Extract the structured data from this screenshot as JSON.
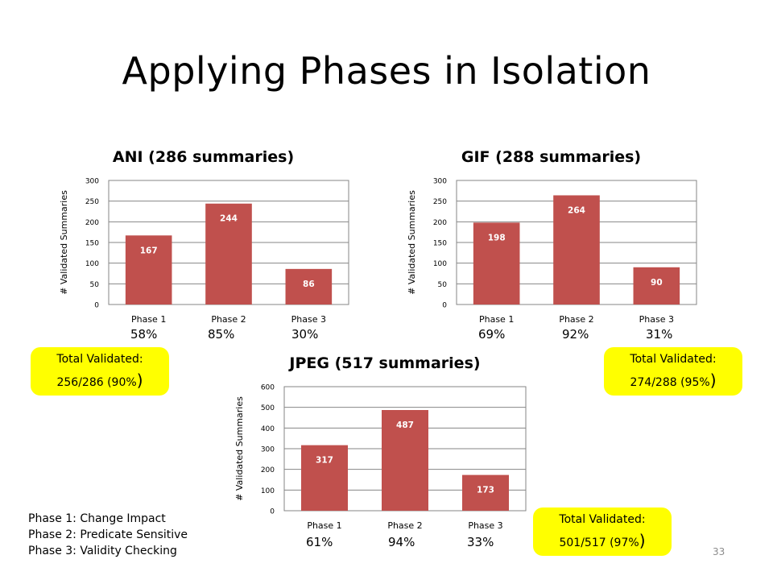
{
  "title": "Applying Phases in Isolation",
  "chart_data": [
    {
      "type": "bar",
      "title": "ANI (286 summaries)",
      "ylabel": "# Validated Summaries",
      "categories": [
        "Phase 1",
        "Phase 2",
        "Phase 3"
      ],
      "values": [
        167,
        244,
        86
      ],
      "ylim": [
        0,
        300
      ],
      "yticks": [
        0,
        50,
        100,
        150,
        200,
        250,
        300
      ],
      "color": "#c0504d",
      "percentages": [
        "58%",
        "85%",
        "30%"
      ]
    },
    {
      "type": "bar",
      "title": "GIF (288 summaries)",
      "ylabel": "# Validated Summaries",
      "categories": [
        "Phase 1",
        "Phase 2",
        "Phase 3"
      ],
      "values": [
        198,
        264,
        90
      ],
      "ylim": [
        0,
        300
      ],
      "yticks": [
        0,
        50,
        100,
        150,
        200,
        250,
        300
      ],
      "color": "#c0504d",
      "percentages": [
        "69%",
        "92%",
        "31%"
      ]
    },
    {
      "type": "bar",
      "title": "JPEG (517 summaries)",
      "ylabel": "# Validated Summaries",
      "categories": [
        "Phase 1",
        "Phase 2",
        "Phase 3"
      ],
      "values": [
        317,
        487,
        173
      ],
      "ylim": [
        0,
        600
      ],
      "yticks": [
        0,
        100,
        200,
        300,
        400,
        500,
        600
      ],
      "color": "#c0504d",
      "percentages": [
        "61%",
        "94%",
        "33%"
      ]
    }
  ],
  "callouts": {
    "ani": {
      "label": "Total Validated:",
      "value": "256/286 (90%",
      "close": ")"
    },
    "gif": {
      "label": "Total Validated:",
      "value": "274/288 (95%",
      "close": ")"
    },
    "jpeg": {
      "label": "Total Validated:",
      "value": "501/517 (97%",
      "close": ")"
    }
  },
  "callout_color": "#ffff00",
  "legend": {
    "phase1": "Phase 1: Change Impact",
    "phase2": "Phase 2: Predicate Sensitive",
    "phase3": "Phase 3: Validity Checking"
  },
  "page_number": "33"
}
